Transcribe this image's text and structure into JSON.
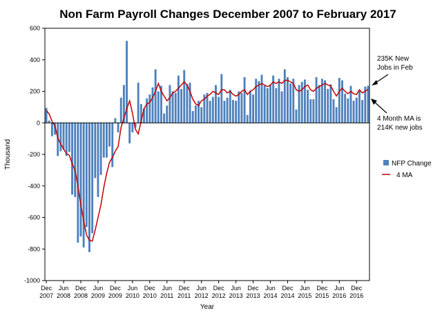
{
  "chart_data": {
    "type": "bar",
    "title": "Non Farm Payroll Changes December 2007 to February 2017",
    "xlabel": "Year",
    "ylabel": "Thousand",
    "ylim": [
      -1000,
      600
    ],
    "y_ticks": [
      "600",
      "400",
      "200",
      "0",
      "-200",
      "-400",
      "-600",
      "-800",
      "-1000"
    ],
    "grid": false,
    "legend_placement": "right",
    "x_tick_labels": [
      {
        "month": "Dec",
        "year": "2007"
      },
      {
        "month": "Jun",
        "year": "2008"
      },
      {
        "month": "Dec",
        "year": "2008"
      },
      {
        "month": "Jun",
        "year": "2009"
      },
      {
        "month": "Dec",
        "year": "2009"
      },
      {
        "month": "Jun",
        "year": "2010"
      },
      {
        "month": "Dec",
        "year": "2010"
      },
      {
        "month": "Jun",
        "year": "2011"
      },
      {
        "month": "Dec",
        "year": "2011"
      },
      {
        "month": "Jun",
        "year": "2012"
      },
      {
        "month": "Dec",
        "year": "2012"
      },
      {
        "month": "Jun",
        "year": "2013"
      },
      {
        "month": "Dec",
        "year": "2013"
      },
      {
        "month": "Jun",
        "year": "2014"
      },
      {
        "month": "Dec",
        "year": "2014"
      },
      {
        "month": "Jun",
        "year": "2015"
      },
      {
        "month": "Dec",
        "year": "2015"
      },
      {
        "month": "Jun",
        "year": "2016"
      },
      {
        "month": "Dec",
        "year": "2016"
      }
    ],
    "series": [
      {
        "name": "NFP Change",
        "kind": "bar",
        "color": "#4f81bd",
        "values": [
          95,
          15,
          -85,
          -75,
          -210,
          -180,
          -170,
          -210,
          -185,
          -455,
          -470,
          -760,
          -720,
          -790,
          -660,
          -820,
          -700,
          -350,
          -470,
          -330,
          -220,
          -220,
          -150,
          -280,
          30,
          -60,
          160,
          240,
          520,
          -130,
          -60,
          -30,
          255,
          120,
          90,
          155,
          180,
          225,
          340,
          200,
          235,
          60,
          110,
          240,
          200,
          190,
          300,
          215,
          335,
          245,
          255,
          75,
          110,
          140,
          100,
          180,
          190,
          140,
          165,
          240,
          165,
          310,
          140,
          160,
          210,
          145,
          140,
          200,
          190,
          290,
          50,
          205,
          180,
          280,
          265,
          305,
          235,
          220,
          240,
          300,
          220,
          280,
          200,
          340,
          290,
          250,
          280,
          85,
          240,
          260,
          275,
          210,
          150,
          150,
          290,
          240,
          280,
          270,
          215,
          245,
          150,
          100,
          285,
          270,
          185,
          155,
          235,
          140,
          160,
          205,
          145,
          230,
          235
        ]
      },
      {
        "name": "4 MA",
        "kind": "line",
        "color": "#c00000",
        "values": [
          80,
          55,
          10,
          -20,
          -95,
          -135,
          -165,
          -195,
          -205,
          -260,
          -300,
          -400,
          -520,
          -620,
          -710,
          -745,
          -750,
          -680,
          -600,
          -520,
          -410,
          -320,
          -250,
          -220,
          -180,
          -150,
          -30,
          30,
          90,
          140,
          60,
          -40,
          -70,
          10,
          90,
          120,
          130,
          160,
          200,
          250,
          200,
          170,
          140,
          160,
          190,
          200,
          220,
          240,
          260,
          240,
          200,
          150,
          120,
          110,
          140,
          150,
          170,
          180,
          200,
          190,
          180,
          210,
          210,
          190,
          200,
          180,
          170,
          180,
          200,
          210,
          180,
          200,
          210,
          230,
          240,
          250,
          240,
          230,
          240,
          260,
          250,
          260,
          250,
          270,
          270,
          260,
          250,
          210,
          200,
          210,
          230,
          240,
          210,
          200,
          220,
          230,
          240,
          250,
          240,
          235,
          200,
          170,
          200,
          220,
          200,
          185,
          200,
          185,
          180,
          210,
          190,
          200,
          214
        ]
      }
    ],
    "annotations": [
      {
        "lines": [
          "235K New",
          "Jobs in Feb"
        ]
      },
      {
        "lines": [
          "4 Month MA is",
          "214K new jobs"
        ]
      }
    ]
  }
}
